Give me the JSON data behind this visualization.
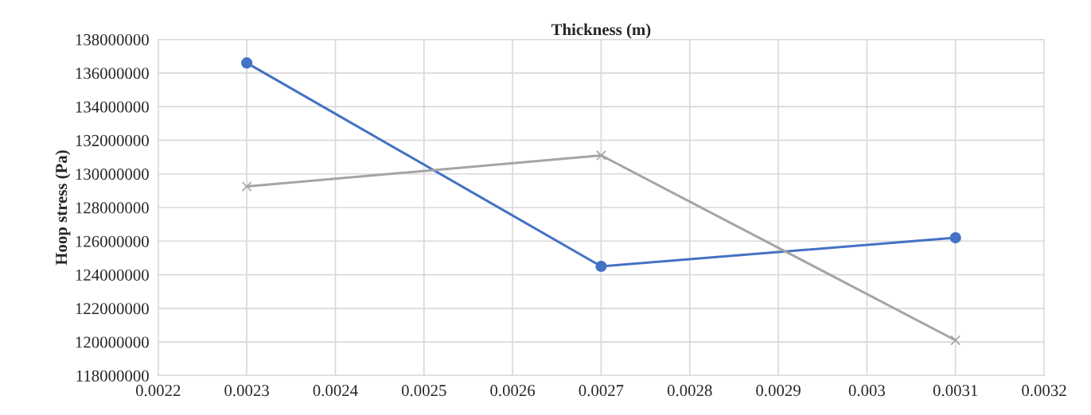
{
  "chart_data": {
    "type": "line",
    "xlabel": "Thickness (m)",
    "ylabel": "Hoop stress (Pa)",
    "x": [
      0.0023,
      0.0027,
      0.0031
    ],
    "series": [
      {
        "color": "#4472c4",
        "marker": "circle",
        "values": [
          136600000,
          124500000,
          126200000
        ]
      },
      {
        "color": "#a5a5a5",
        "marker": "cross",
        "values": [
          129250000,
          131100000,
          120100000
        ]
      }
    ],
    "xlim": [
      0.0022,
      0.0032
    ],
    "xticks": [
      0.0022,
      0.0023,
      0.0024,
      0.0025,
      0.0026,
      0.0027,
      0.0028,
      0.0029,
      0.003,
      0.0031,
      0.0032
    ],
    "ylim": [
      118000000,
      138000000
    ],
    "yticks": [
      118000000,
      120000000,
      122000000,
      124000000,
      126000000,
      128000000,
      130000000,
      132000000,
      134000000,
      136000000,
      138000000
    ],
    "grid": true,
    "line_style": "solid"
  }
}
